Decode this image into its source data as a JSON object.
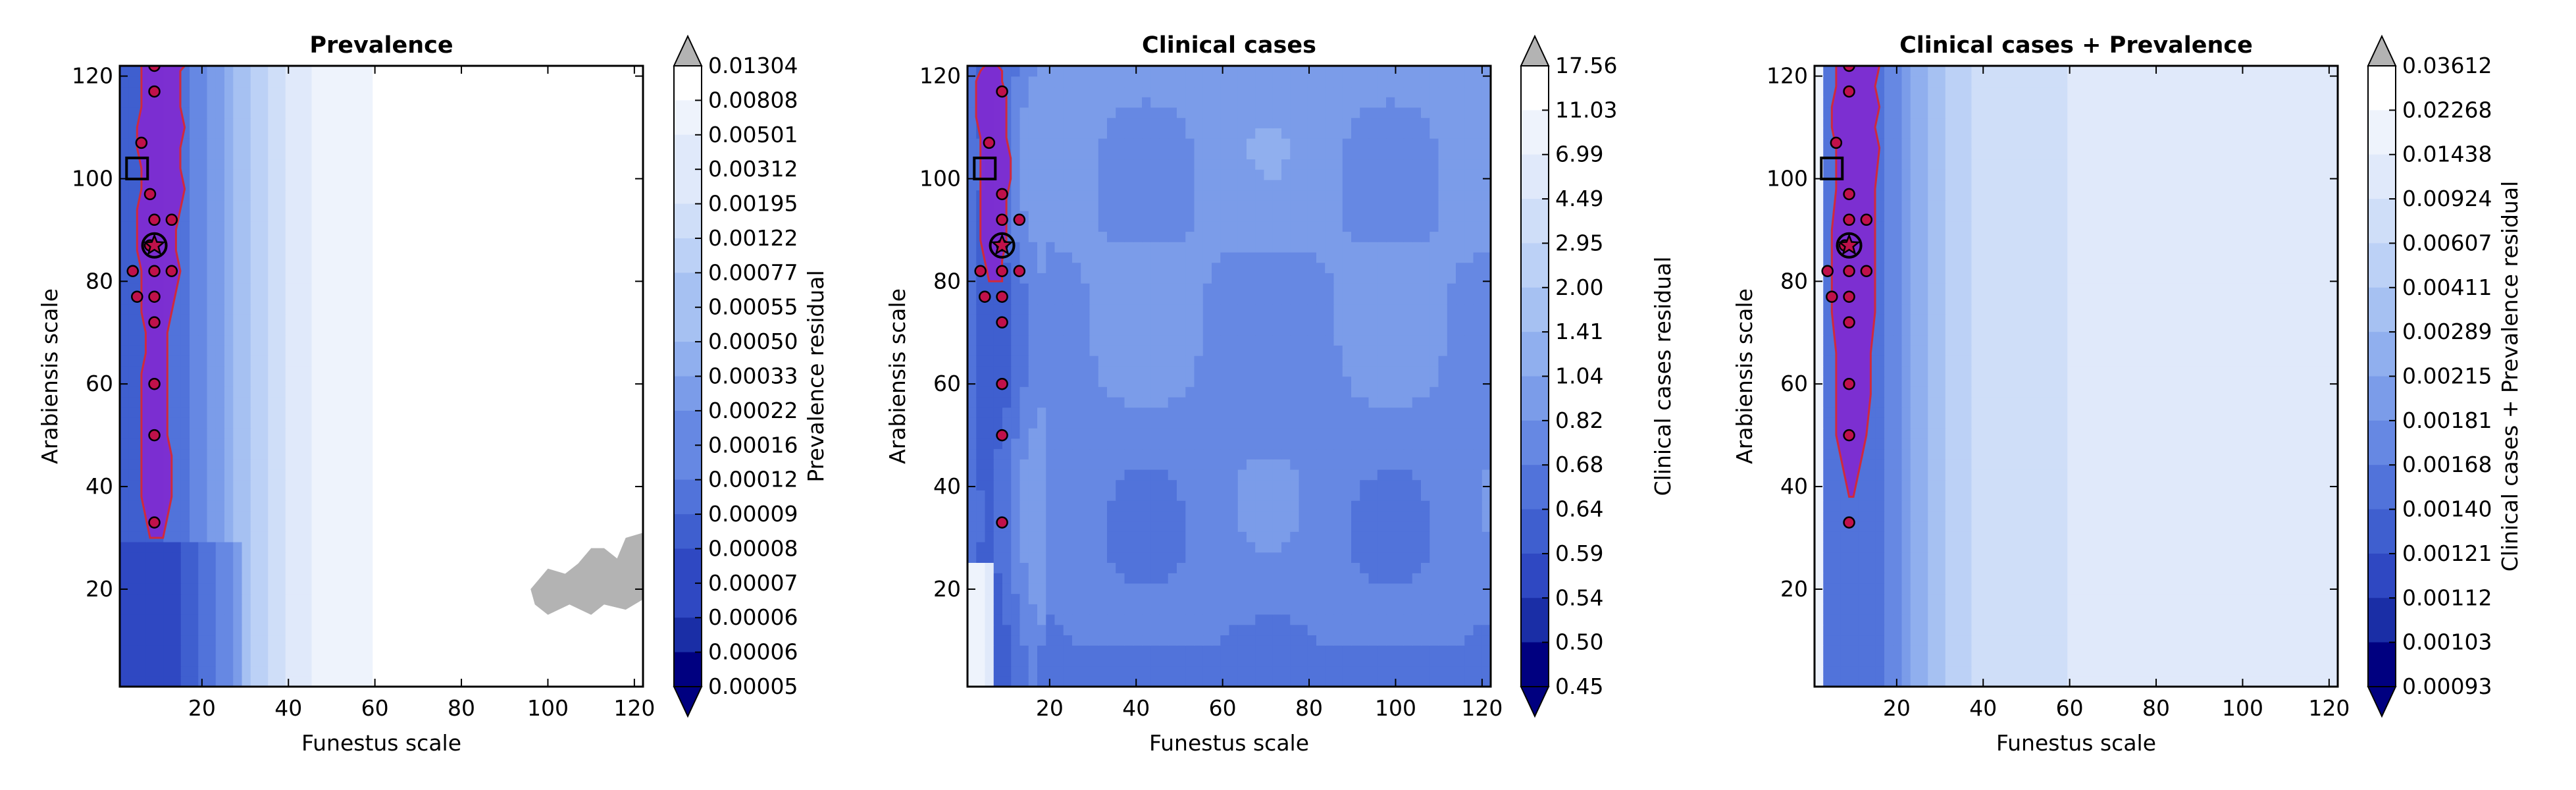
{
  "colors": {
    "band_best": "#7e2bd1",
    "band_line": "#d02a3c",
    "marker_fill": "#c0114a",
    "over": "#b3b3b3",
    "under": "#000080",
    "bg": "#ffffff",
    "ramp": [
      "#000080",
      "#1a2ea6",
      "#2f48c2",
      "#3f5fcf",
      "#5173da",
      "#6688e3",
      "#7b9ce9",
      "#90afee",
      "#a6c1f2",
      "#bcd1f6",
      "#cfdef8",
      "#e0e9fa",
      "#eef3fc",
      "#ffffff"
    ]
  },
  "chart_data": [
    {
      "type": "heatmap",
      "title": "Prevalence",
      "xlabel": "Funestus scale",
      "ylabel": "Arabiensis scale",
      "colorbar_label": "Prevalence residual",
      "xlim": [
        1,
        122
      ],
      "ylim": [
        1,
        122
      ],
      "xticks": [
        "20",
        "40",
        "60",
        "80",
        "100",
        "120"
      ],
      "yticks": [
        "20",
        "40",
        "60",
        "80",
        "100",
        "120"
      ],
      "colorbar_ticks": [
        "0.01304",
        "0.00808",
        "0.00501",
        "0.00312",
        "0.00195",
        "0.00122",
        "0.00077",
        "0.00055",
        "0.00050",
        "0.00033",
        "0.00022",
        "0.00016",
        "0.00012",
        "0.00009",
        "0.00008",
        "0.00007",
        "0.00006",
        "0.00006",
        "0.00005"
      ],
      "band_x": [
        [
          8,
          11
        ],
        [
          7,
          12
        ],
        [
          6,
          13
        ],
        [
          6,
          13
        ],
        [
          6,
          13
        ],
        [
          6,
          12
        ],
        [
          6,
          12
        ],
        [
          6,
          12
        ],
        [
          6,
          12
        ],
        [
          7,
          12
        ],
        [
          7,
          12
        ],
        [
          6,
          13
        ],
        [
          6,
          14
        ],
        [
          6,
          15
        ],
        [
          5,
          14
        ],
        [
          5,
          14
        ],
        [
          5,
          15
        ],
        [
          6,
          16
        ],
        [
          6,
          15
        ],
        [
          5,
          15
        ],
        [
          5,
          16
        ],
        [
          6,
          15
        ],
        [
          6,
          15
        ],
        [
          6,
          15
        ],
        [
          6,
          16
        ]
      ],
      "band_y": [
        30,
        34,
        38,
        42,
        46,
        50,
        54,
        58,
        62,
        66,
        70,
        74,
        78,
        82,
        86,
        90,
        94,
        98,
        102,
        106,
        110,
        114,
        118,
        121,
        122
      ],
      "ridge": [
        7.5,
        25
      ],
      "over_region": [
        [
          96,
          20
        ],
        [
          100,
          24
        ],
        [
          104,
          23
        ],
        [
          107,
          25
        ],
        [
          110,
          28
        ],
        [
          113,
          28
        ],
        [
          116,
          26
        ],
        [
          118,
          30
        ],
        [
          122,
          31
        ],
        [
          122,
          18
        ],
        [
          118,
          16
        ],
        [
          113,
          17
        ],
        [
          110,
          15
        ],
        [
          105,
          17
        ],
        [
          100,
          15
        ],
        [
          97,
          17
        ]
      ],
      "points": [
        [
          9,
          122
        ],
        [
          9,
          117
        ],
        [
          6,
          107
        ],
        [
          8,
          97
        ],
        [
          9,
          92
        ],
        [
          13,
          92
        ],
        [
          8,
          87
        ],
        [
          4,
          82
        ],
        [
          9,
          82
        ],
        [
          13,
          82
        ],
        [
          5,
          77
        ],
        [
          9,
          77
        ],
        [
          9,
          72
        ],
        [
          9,
          60
        ],
        [
          9,
          50
        ],
        [
          9,
          33
        ]
      ],
      "star": [
        9,
        87
      ],
      "square": [
        5,
        102
      ]
    },
    {
      "type": "heatmap",
      "title": "Clinical cases",
      "xlabel": "Funestus scale",
      "ylabel": "Arabiensis scale",
      "colorbar_label": "Clinical cases residual",
      "xlim": [
        1,
        122
      ],
      "ylim": [
        1,
        122
      ],
      "xticks": [
        "20",
        "40",
        "60",
        "80",
        "100",
        "120"
      ],
      "yticks": [
        "20",
        "40",
        "60",
        "80",
        "100",
        "120"
      ],
      "colorbar_ticks": [
        "17.56",
        "11.03",
        "6.99",
        "4.49",
        "2.95",
        "2.00",
        "1.41",
        "1.04",
        "0.82",
        "0.68",
        "0.64",
        "0.59",
        "0.54",
        "0.50",
        "0.45"
      ],
      "band_x": [
        [
          6,
          9
        ],
        [
          5,
          9
        ],
        [
          4,
          10
        ],
        [
          4,
          10
        ],
        [
          4,
          10
        ],
        [
          4,
          11
        ],
        [
          4,
          11
        ],
        [
          4,
          10
        ],
        [
          3,
          10
        ],
        [
          3,
          10
        ],
        [
          3,
          9
        ],
        [
          4,
          9
        ],
        [
          5,
          8
        ]
      ],
      "band_y": [
        80,
        84,
        88,
        92,
        96,
        100,
        104,
        108,
        112,
        116,
        119,
        121,
        122
      ],
      "ridge": [
        3,
        9
      ],
      "over_region": [],
      "points": [
        [
          9,
          117
        ],
        [
          6,
          107
        ],
        [
          9,
          97
        ],
        [
          9,
          92
        ],
        [
          13,
          92
        ],
        [
          9,
          87
        ],
        [
          4,
          82
        ],
        [
          9,
          82
        ],
        [
          13,
          82
        ],
        [
          5,
          77
        ],
        [
          9,
          77
        ],
        [
          9,
          72
        ],
        [
          9,
          60
        ],
        [
          9,
          50
        ],
        [
          9,
          33
        ]
      ],
      "star": [
        9,
        87
      ],
      "square": [
        5,
        102
      ]
    },
    {
      "type": "heatmap",
      "title": "Clinical cases + Prevalence",
      "xlabel": "Funestus scale",
      "ylabel": "Arabiensis scale",
      "colorbar_label": "Clinical cases + Prevalence residual",
      "xlim": [
        1,
        122
      ],
      "ylim": [
        1,
        122
      ],
      "xticks": [
        "20",
        "40",
        "60",
        "80",
        "100",
        "120"
      ],
      "yticks": [
        "20",
        "40",
        "60",
        "80",
        "100",
        "120"
      ],
      "colorbar_ticks": [
        "0.03612",
        "0.02268",
        "0.01438",
        "0.00924",
        "0.00607",
        "0.00411",
        "0.00289",
        "0.00215",
        "0.00181",
        "0.00168",
        "0.00140",
        "0.00121",
        "0.00112",
        "0.00103",
        "0.00093"
      ],
      "band_x": [
        [
          9,
          10
        ],
        [
          8,
          11
        ],
        [
          7,
          12
        ],
        [
          6,
          13
        ],
        [
          6,
          14
        ],
        [
          6,
          14
        ],
        [
          5,
          15
        ],
        [
          5,
          15
        ],
        [
          5,
          15
        ],
        [
          6,
          15
        ],
        [
          6,
          16
        ],
        [
          5,
          15
        ],
        [
          5,
          16
        ],
        [
          6,
          15
        ],
        [
          6,
          16
        ]
      ],
      "band_y": [
        38,
        42,
        46,
        50,
        58,
        66,
        74,
        82,
        90,
        98,
        106,
        110,
        114,
        118,
        122
      ],
      "ridge": [
        8,
        22
      ],
      "over_region": [],
      "points": [
        [
          9,
          122
        ],
        [
          9,
          117
        ],
        [
          6,
          107
        ],
        [
          9,
          97
        ],
        [
          9,
          92
        ],
        [
          13,
          92
        ],
        [
          8,
          87
        ],
        [
          4,
          82
        ],
        [
          9,
          82
        ],
        [
          13,
          82
        ],
        [
          5,
          77
        ],
        [
          9,
          77
        ],
        [
          9,
          72
        ],
        [
          9,
          60
        ],
        [
          9,
          50
        ],
        [
          9,
          33
        ]
      ],
      "star": [
        9,
        87
      ],
      "square": [
        5,
        102
      ]
    }
  ]
}
